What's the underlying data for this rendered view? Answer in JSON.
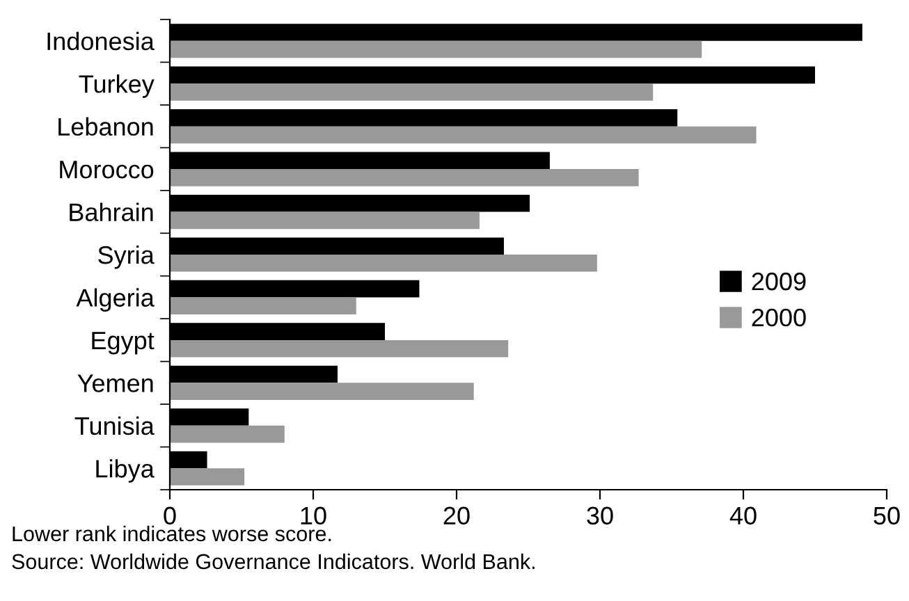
{
  "chart_data": {
    "type": "bar",
    "orientation": "horizontal",
    "categories": [
      "Indonesia",
      "Turkey",
      "Lebanon",
      "Morocco",
      "Bahrain",
      "Syria",
      "Algeria",
      "Egypt",
      "Yemen",
      "Tunisia",
      "Libya"
    ],
    "series": [
      {
        "name": "2009",
        "color": "#000000",
        "values": [
          48.3,
          45.0,
          35.4,
          26.5,
          25.1,
          23.3,
          17.4,
          15.0,
          11.7,
          5.5,
          2.6
        ]
      },
      {
        "name": "2000",
        "color": "#999999",
        "values": [
          37.1,
          33.7,
          40.9,
          32.7,
          21.6,
          29.8,
          13.0,
          23.6,
          21.2,
          8.0,
          5.2
        ]
      }
    ],
    "xlim": [
      0,
      50
    ],
    "xticks": [
      0,
      10,
      20,
      30,
      40,
      50
    ],
    "grid": false,
    "legend": "right",
    "annotations": [
      "Lower rank indicates worse score.",
      "Source: Worldwide Governance Indicators. World Bank."
    ]
  }
}
